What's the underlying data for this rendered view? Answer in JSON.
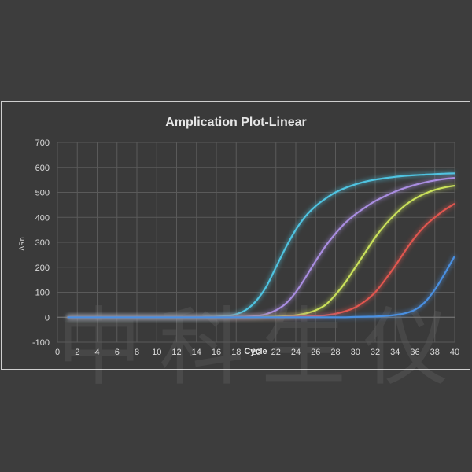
{
  "chart_data": {
    "type": "line",
    "title": "Amplication Plot-Linear",
    "xlabel": "Cycle",
    "ylabel": "ΔRn",
    "xlim": [
      0,
      40
    ],
    "ylim": [
      -100,
      700
    ],
    "xticks": [
      0,
      2,
      4,
      6,
      8,
      10,
      12,
      14,
      16,
      18,
      20,
      22,
      24,
      26,
      28,
      30,
      32,
      34,
      36,
      38,
      40
    ],
    "yticks": [
      -100,
      0,
      100,
      200,
      300,
      400,
      500,
      600,
      700
    ],
    "grid": true,
    "legend": "none",
    "x": [
      1,
      2,
      3,
      4,
      5,
      6,
      7,
      8,
      9,
      10,
      11,
      12,
      13,
      14,
      15,
      16,
      17,
      18,
      19,
      20,
      21,
      22,
      23,
      24,
      25,
      26,
      27,
      28,
      29,
      30,
      31,
      32,
      33,
      34,
      35,
      36,
      37,
      38,
      39,
      40
    ],
    "series": [
      {
        "color": "#4fc3e0",
        "values": [
          0,
          0,
          0,
          0,
          0,
          0,
          0,
          0,
          0,
          0,
          0,
          0,
          0,
          0,
          1,
          2,
          5,
          12,
          30,
          65,
          120,
          200,
          280,
          350,
          405,
          445,
          475,
          500,
          518,
          532,
          543,
          551,
          557,
          562,
          566,
          569,
          571,
          573,
          575,
          576
        ]
      },
      {
        "color": "#a98de0",
        "values": [
          0,
          0,
          0,
          0,
          0,
          0,
          0,
          0,
          0,
          0,
          0,
          0,
          0,
          0,
          0,
          0,
          0,
          1,
          2,
          5,
          12,
          28,
          55,
          100,
          160,
          225,
          285,
          335,
          378,
          412,
          440,
          465,
          485,
          503,
          518,
          530,
          540,
          548,
          554,
          558
        ]
      },
      {
        "color": "#c9e05a",
        "values": [
          0,
          0,
          0,
          0,
          0,
          0,
          0,
          0,
          0,
          0,
          0,
          0,
          0,
          0,
          0,
          0,
          0,
          0,
          0,
          0,
          1,
          2,
          4,
          8,
          15,
          28,
          50,
          90,
          140,
          200,
          260,
          320,
          370,
          412,
          448,
          475,
          495,
          510,
          520,
          527
        ]
      },
      {
        "color": "#e0564f",
        "values": [
          0,
          0,
          0,
          0,
          0,
          0,
          0,
          0,
          0,
          0,
          0,
          0,
          0,
          0,
          0,
          0,
          0,
          0,
          0,
          0,
          0,
          0,
          1,
          2,
          3,
          5,
          8,
          14,
          24,
          40,
          65,
          100,
          150,
          205,
          265,
          320,
          365,
          400,
          430,
          455
        ]
      },
      {
        "color": "#4a8fe0",
        "values": [
          0,
          0,
          0,
          0,
          0,
          0,
          0,
          0,
          0,
          0,
          0,
          0,
          0,
          0,
          0,
          0,
          0,
          0,
          0,
          0,
          0,
          0,
          0,
          0,
          0,
          0,
          0,
          0,
          0,
          1,
          2,
          3,
          5,
          9,
          16,
          30,
          60,
          110,
          175,
          245
        ]
      }
    ]
  },
  "watermark": "中科生仪"
}
